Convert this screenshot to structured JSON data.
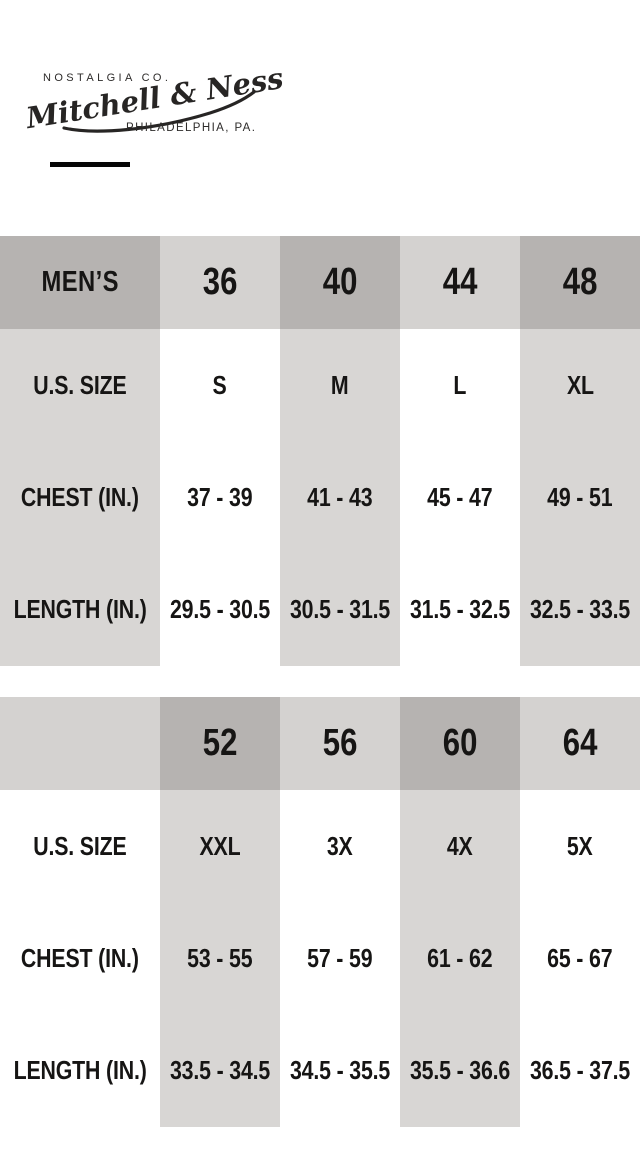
{
  "colors": {
    "dark": "#b6b3b1",
    "light": "#d4d2d0",
    "gray": "#d8d6d4",
    "white": "#ffffff",
    "text": "#161514"
  },
  "logo": {
    "top_line": "NOSTALGIA CO.",
    "script": "Mitchell & Ness",
    "bottom_line": "PHILADELPHIA, PA."
  },
  "tables": [
    {
      "header": [
        "MEN’S",
        "36",
        "40",
        "44",
        "48"
      ],
      "header_shades": [
        "dark",
        "light",
        "dark",
        "light",
        "dark"
      ],
      "col_shades": [
        "gray",
        "white",
        "gray",
        "white",
        "gray"
      ],
      "rows": [
        {
          "label": "U.S. SIZE",
          "values": [
            "S",
            "M",
            "L",
            "XL"
          ]
        },
        {
          "label": "CHEST (IN.)",
          "values": [
            "37 - 39",
            "41 - 43",
            "45 - 47",
            "49 - 51"
          ]
        },
        {
          "label": "LENGTH (IN.)",
          "values": [
            "29.5 - 30.5",
            "30.5 - 31.5",
            "31.5 - 32.5",
            "32.5 - 33.5"
          ]
        }
      ]
    },
    {
      "header": [
        "",
        "52",
        "56",
        "60",
        "64"
      ],
      "header_shades": [
        "light",
        "dark",
        "light",
        "dark",
        "light"
      ],
      "col_shades": [
        "white",
        "gray",
        "white",
        "gray",
        "white"
      ],
      "rows": [
        {
          "label": "U.S. SIZE",
          "values": [
            "XXL",
            "3X",
            "4X",
            "5X"
          ]
        },
        {
          "label": "CHEST (IN.)",
          "values": [
            "53 - 55",
            "57 - 59",
            "61 - 62",
            "65 - 67"
          ]
        },
        {
          "label": "LENGTH (IN.)",
          "values": [
            "33.5 - 34.5",
            "34.5 - 35.5",
            "35.5 - 36.6",
            "36.5 - 37.5"
          ]
        }
      ]
    }
  ]
}
